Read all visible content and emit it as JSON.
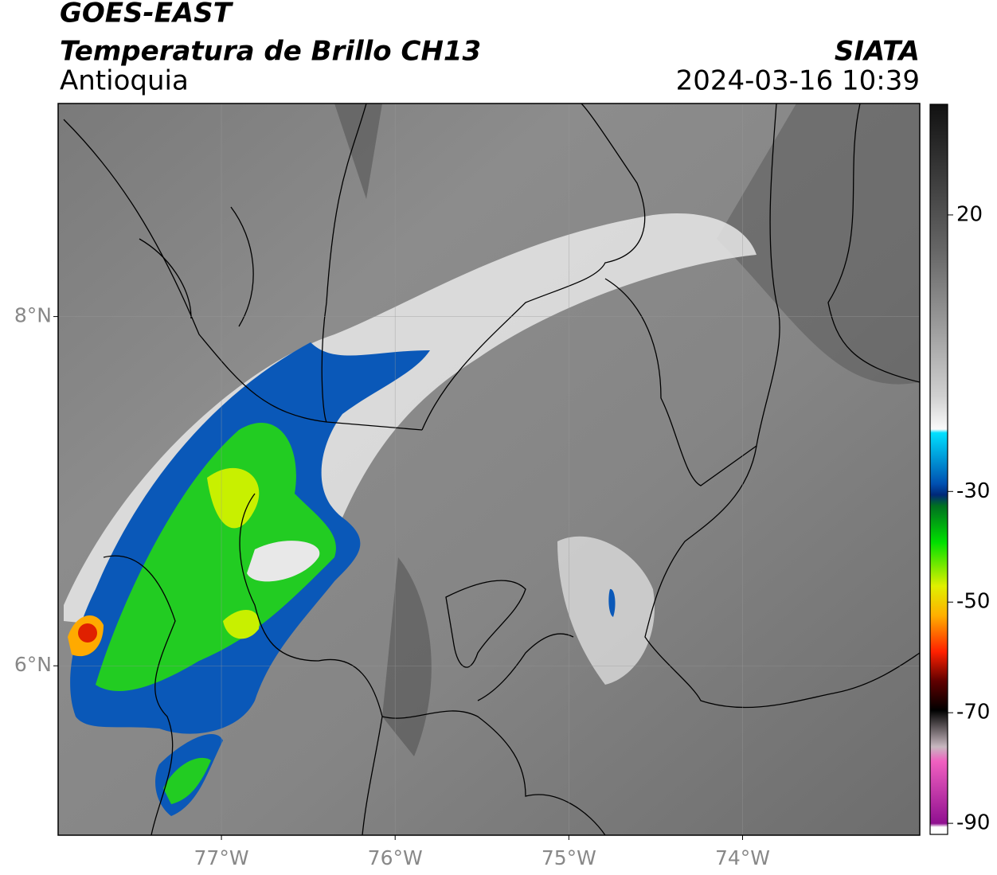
{
  "header": {
    "satellite": "GOES-EAST",
    "product": "Temperatura de Brillo CH13",
    "region": "Antioquia",
    "source": "SIATA",
    "datetime": "2024-03-16 10:39"
  },
  "map": {
    "xlim": [
      -77.94,
      -72.98
    ],
    "ylim": [
      5.03,
      9.22
    ],
    "xticks": [
      {
        "value": -77,
        "label": "77°W"
      },
      {
        "value": -76,
        "label": "76°W"
      },
      {
        "value": -75,
        "label": "75°W"
      },
      {
        "value": -74,
        "label": "74°W"
      }
    ],
    "yticks": [
      {
        "value": 6,
        "label": "6°N"
      },
      {
        "value": 8,
        "label": "8°N"
      }
    ],
    "grid": true
  },
  "colorbar": {
    "lim": [
      -92,
      40
    ],
    "ticks": [
      20,
      -30,
      -50,
      -70,
      -90
    ]
  }
}
